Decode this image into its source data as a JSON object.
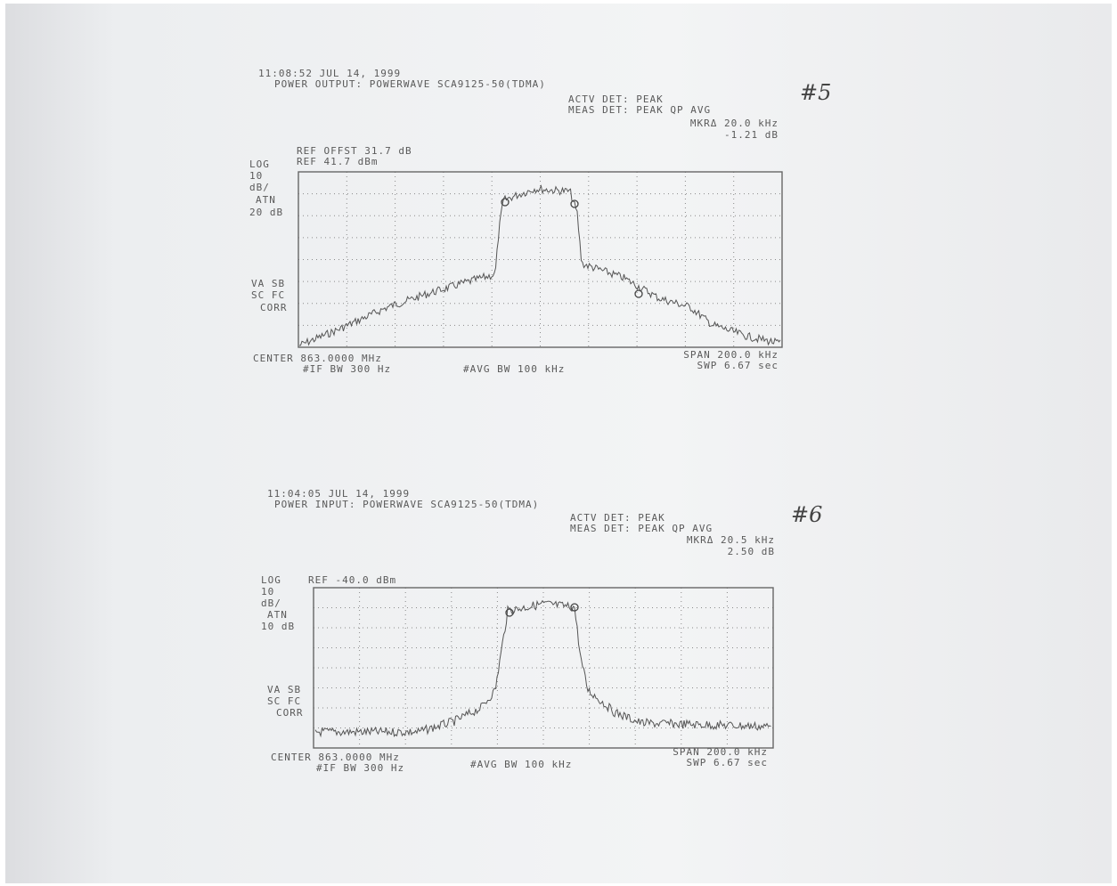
{
  "plots": [
    {
      "timestamp": "11:08:52 JUL 14, 1999",
      "title": "POWER OUTPUT: POWERWAVE SCA9125-50(TDMA)",
      "actv_det": "ACTV DET: PEAK",
      "meas_det": "MEAS DET: PEAK QP AVG",
      "marker_delta": "MKRΔ 20.0 kHz",
      "marker_level": "-1.21 dB",
      "note": "#5",
      "ref_offset": "REF OFFST 31.7 dB",
      "ref_level": "REF 41.7 dBm",
      "scale": [
        "LOG",
        "10",
        "dB/",
        "ATN",
        "20 dB"
      ],
      "corr": [
        "VA SB",
        "SC FC",
        "CORR"
      ],
      "center": "CENTER 863.0000 MHz",
      "if_bw": "#IF BW 300 Hz",
      "avg_bw": "#AVG BW 100 kHz",
      "span": "SPAN 200.0 kHz",
      "sweep": "SWP 6.67 sec"
    },
    {
      "timestamp": "11:04:05 JUL 14, 1999",
      "title": "POWER INPUT: POWERWAVE SCA9125-50(TDMA)",
      "actv_det": "ACTV DET: PEAK",
      "meas_det": "MEAS DET: PEAK QP AVG",
      "marker_delta": "MKRΔ 20.5 kHz",
      "marker_level": "2.50 dB",
      "note": "#6",
      "ref_level": "REF -40.0 dBm",
      "scale": [
        "LOG",
        "10",
        "dB/",
        "ATN",
        "10 dB"
      ],
      "corr": [
        "VA SB",
        "SC FC",
        "CORR"
      ],
      "center": "CENTER 863.0000 MHz",
      "if_bw": "#IF BW 300 Hz",
      "avg_bw": "#AVG BW 100 kHz",
      "span": "SPAN 200.0 kHz",
      "sweep": "SWP 6.67 sec"
    }
  ]
}
